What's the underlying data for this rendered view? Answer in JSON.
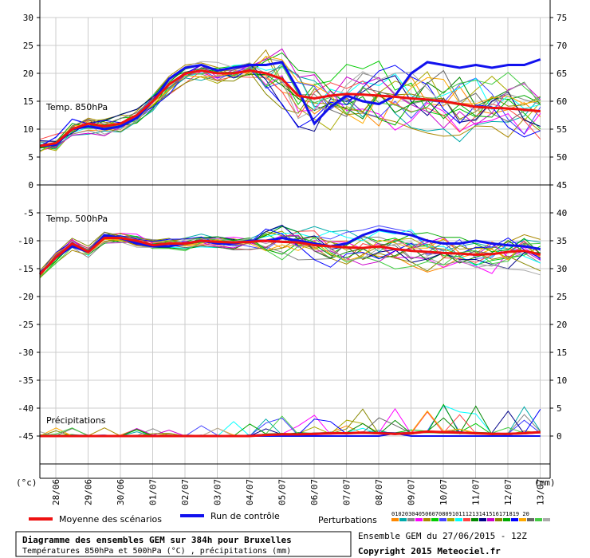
{
  "chart_data": {
    "type": "line",
    "title": "Diagramme des ensembles GEM sur 384h pour Bruxelles",
    "subtitle": "Températures 850hPa et 500hPa (°C) , précipitations (mm)",
    "ensemble_info": "Ensemble GEM du 27/06/2015 - 12Z",
    "copyright": "Copyright 2015 Meteociel.fr",
    "left_axis_label": "(°c)",
    "right_axis_label": "(mm)",
    "left_ticks": [
      30,
      25,
      20,
      15,
      10,
      5,
      0,
      -5,
      -10,
      -15,
      -20,
      -25,
      -30,
      -35,
      -40,
      -45
    ],
    "right_ticks": [
      75,
      70,
      65,
      60,
      55,
      50,
      45,
      40,
      35,
      30,
      25,
      20,
      15,
      10,
      5,
      0
    ],
    "x_labels": [
      "28/06",
      "29/06",
      "30/06",
      "01/07",
      "02/07",
      "03/07",
      "04/07",
      "05/07",
      "06/07",
      "07/07",
      "08/07",
      "09/07",
      "10/07",
      "11/07",
      "12/07",
      "13/07"
    ],
    "panel_labels": {
      "t850": "Temp. 850hPa",
      "t500": "Temp. 500hPa",
      "precip": "Précipitations"
    },
    "legend": {
      "mean": {
        "label": "Moyenne des scénarios",
        "color": "#ee1111"
      },
      "control": {
        "label": "Run de contrôle",
        "color": "#1111ee"
      },
      "perturbations": {
        "label": "Perturbations",
        "numbers": "01020304050607080910111213141516171819 20",
        "colors": [
          "#ff8800",
          "#00aaaa",
          "#888888",
          "#ff00ff",
          "#aa8800",
          "#00cc00",
          "#4444ff",
          "#aaaa00",
          "#00ffff",
          "#ff4444",
          "#008800",
          "#000088",
          "#cc00cc",
          "#888800",
          "#00aa00",
          "#0000ff",
          "#ffaa00",
          "#666666",
          "#44cc44",
          "#aaaaaa"
        ]
      }
    },
    "x_times": [
      0,
      0.5,
      1,
      1.5,
      2,
      2.5,
      3,
      3.5,
      4,
      4.5,
      5,
      5.5,
      6,
      6.5,
      7,
      7.5,
      8,
      8.5,
      9,
      9.5,
      10,
      10.5,
      11,
      11.5,
      12,
      12.5,
      13,
      13.5,
      14,
      14.5,
      15,
      15.5
    ],
    "mean_t850": [
      7,
      7.5,
      10,
      11,
      10.5,
      11,
      12.5,
      15,
      18,
      20,
      20.5,
      20,
      20,
      20.5,
      20,
      19,
      16,
      15.5,
      16,
      16.3,
      16.2,
      16,
      15.8,
      15.5,
      15.3,
      15,
      14.5,
      14,
      13.8,
      13.7,
      13.5,
      13.2
    ],
    "control_t850": [
      7,
      7.2,
      10,
      10.5,
      10,
      10.5,
      12,
      15,
      19,
      21,
      21.5,
      20.5,
      21,
      21.5,
      21.5,
      22,
      17,
      11,
      14,
      16,
      15,
      14.5,
      16,
      20,
      22,
      21.5,
      21,
      21.5,
      21,
      21.5,
      21.5,
      22.5
    ],
    "mean_t500": [
      -16,
      -13,
      -10.5,
      -12,
      -9.5,
      -9.5,
      -10,
      -10.8,
      -10.5,
      -10.5,
      -10,
      -10.2,
      -10.3,
      -10.2,
      -10,
      -10.2,
      -10.3,
      -10.8,
      -11,
      -11.2,
      -11.3,
      -11,
      -11.5,
      -11.8,
      -12,
      -12.2,
      -12.3,
      -12.5,
      -12.4,
      -12,
      -11.8,
      -12.5
    ],
    "control_t500": [
      -16,
      -13,
      -11,
      -12,
      -9,
      -9.5,
      -10.5,
      -11,
      -11,
      -10.5,
      -10,
      -10.5,
      -10.5,
      -10,
      -10,
      -9.5,
      -10,
      -10.5,
      -11,
      -10.5,
      -9,
      -8,
      -8.5,
      -9,
      -10,
      -10.5,
      -10.5,
      -10,
      -10.5,
      -10.8,
      -11,
      -11.5
    ],
    "mean_precip": [
      0,
      0,
      0,
      0,
      0,
      0,
      0,
      0,
      0,
      0,
      0,
      0,
      0,
      0,
      0.2,
      0.3,
      0.3,
      0.4,
      0.5,
      0.5,
      0.6,
      0.5,
      0.4,
      0.5,
      0.8,
      0.7,
      0.6,
      0.5,
      0.4,
      0.4,
      0.5,
      0.7
    ],
    "control_precip": [
      0,
      0,
      0,
      0,
      0,
      0,
      0,
      0,
      0,
      0,
      0,
      0,
      0,
      0,
      0,
      0,
      0,
      0,
      0,
      0,
      0,
      0,
      0.5,
      0,
      0,
      0,
      0,
      0,
      0,
      0,
      0,
      0
    ]
  }
}
